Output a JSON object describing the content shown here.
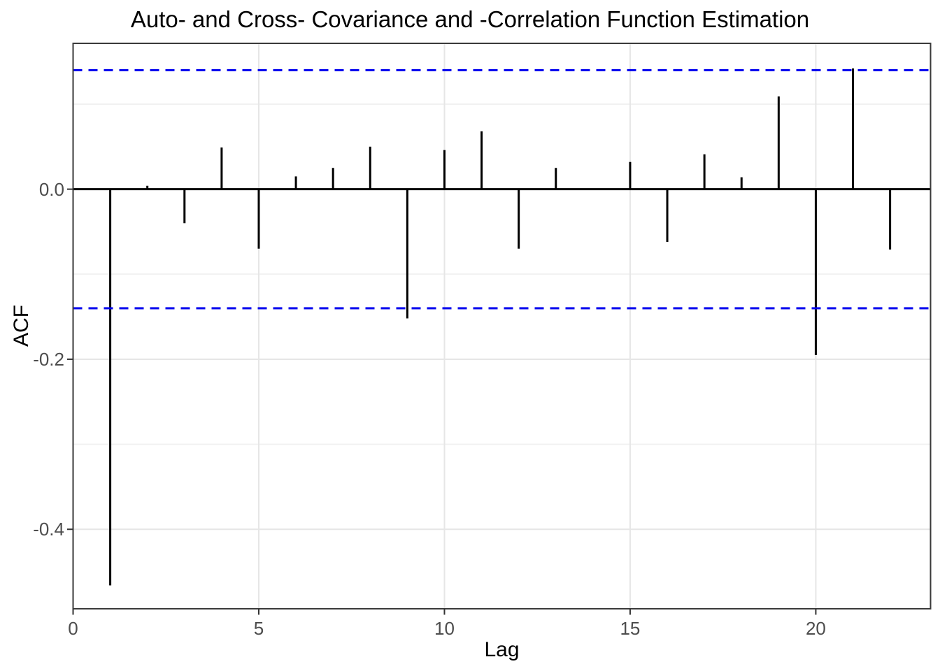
{
  "chart_data": {
    "type": "bar",
    "subtype": "acf-lollipop-segments",
    "title": "Auto- and Cross- Covariance and -Correlation Function Estimation",
    "xlabel": "Lag",
    "ylabel": "ACF",
    "lags": [
      1,
      2,
      3,
      4,
      5,
      6,
      7,
      8,
      9,
      10,
      11,
      12,
      13,
      14,
      15,
      16,
      17,
      18,
      19,
      20,
      21,
      22
    ],
    "values": [
      -0.466,
      0.004,
      -0.04,
      0.049,
      -0.07,
      0.015,
      0.025,
      0.05,
      -0.152,
      0.046,
      0.068,
      -0.07,
      0.025,
      0.0,
      0.032,
      -0.062,
      0.041,
      0.014,
      0.109,
      -0.195,
      0.142,
      -0.071
    ],
    "zero_line": 0,
    "ci_upper": 0.14,
    "ci_lower": -0.14,
    "ci_line_style": "dashed",
    "xlim": [
      0,
      23.09
    ],
    "ylim": [
      -0.4935,
      0.1715
    ],
    "x_ticks": [
      0,
      5,
      10,
      15,
      20
    ],
    "x_tick_labels": [
      "0",
      "5",
      "10",
      "15",
      "20"
    ],
    "y_ticks": [
      0,
      -0.2,
      -0.4
    ],
    "y_tick_labels": [
      "0.0",
      "-0.2",
      "-0.4"
    ],
    "y_minor_gridlines": [
      0.1,
      -0.1,
      -0.3
    ],
    "grid": true,
    "legend_position": "none",
    "colors": {
      "bars": "#000000",
      "zero_line": "#000000",
      "ci": "#0000EE",
      "grid_major": "#E6E6E6",
      "grid_minor": "#F1F1F1",
      "panel_border": "#3A3A3A",
      "axis_ticks": "#333333",
      "tick_label": "#4D4D4D",
      "title": "#000000",
      "background": "#FFFFFF"
    }
  }
}
